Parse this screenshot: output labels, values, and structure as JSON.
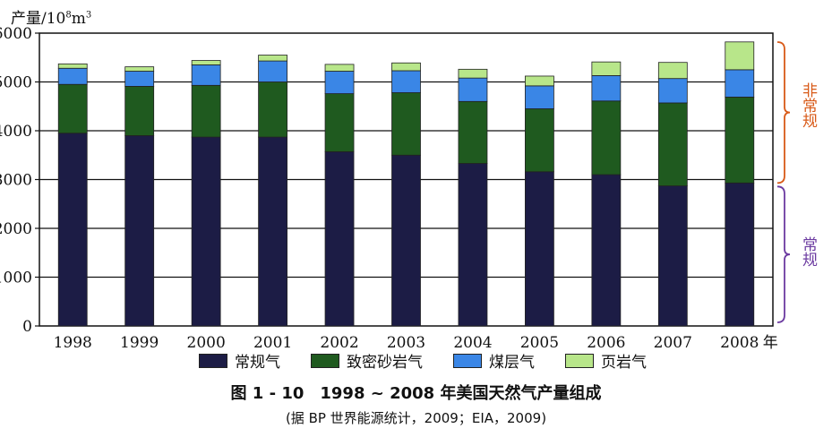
{
  "chart_data": {
    "type": "bar",
    "stacked": true,
    "y_label_prefix": "产量/10",
    "y_label_exp": "8",
    "y_label_unit": "m",
    "y_label_unit_exp": "3",
    "x_suffix": "年",
    "ylim": [
      0,
      6000
    ],
    "yticks": [
      0,
      1000,
      2000,
      3000,
      4000,
      5000,
      6000
    ],
    "grid": true,
    "legend_position": "bottom",
    "categories": [
      "1998",
      "1999",
      "2000",
      "2001",
      "2002",
      "2003",
      "2004",
      "2005",
      "2006",
      "2007",
      "2008"
    ],
    "series": [
      {
        "name": "常规气",
        "color": "#1c1c45",
        "values": [
          3950,
          3900,
          3870,
          3870,
          3570,
          3500,
          3330,
          3160,
          3100,
          2870,
          2930
        ]
      },
      {
        "name": "致密砂岩气",
        "color": "#1f5a1f",
        "values": [
          1000,
          1010,
          1060,
          1130,
          1190,
          1280,
          1270,
          1290,
          1510,
          1700,
          1760
        ]
      },
      {
        "name": "煤层气",
        "color": "#3a86e6",
        "values": [
          330,
          310,
          420,
          430,
          460,
          450,
          480,
          470,
          520,
          500,
          560
        ]
      },
      {
        "name": "页岩气",
        "color": "#b8e68a",
        "values": [
          90,
          90,
          90,
          120,
          140,
          160,
          180,
          200,
          280,
          330,
          570
        ]
      }
    ],
    "brackets": [
      {
        "label": "非常规",
        "color": "#d85a18"
      },
      {
        "label": "常规",
        "color": "#6b3aa0"
      }
    ]
  },
  "caption": "图 1 - 10　1998 ~ 2008 年美国天然气产量组成",
  "source": "(据 BP 世界能源统计，2009；EIA，2009)"
}
